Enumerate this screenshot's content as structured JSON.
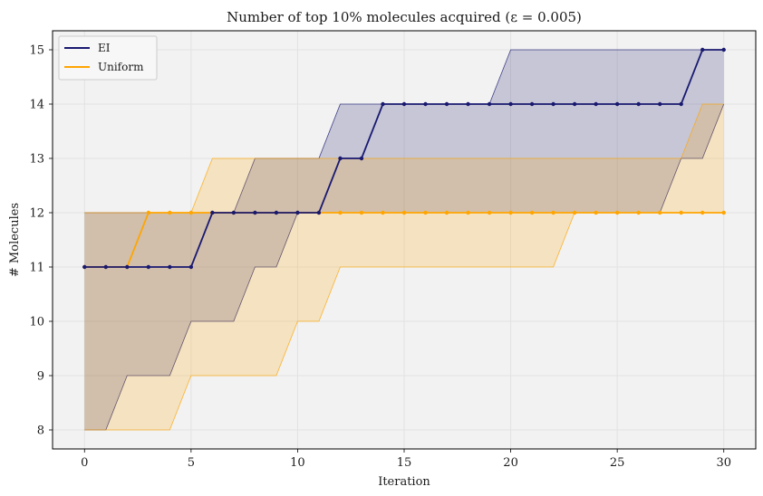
{
  "chart_data": {
    "type": "line",
    "title": "Number of top 10% molecules acquired (ε = 0.005)",
    "xlabel": "Iteration",
    "ylabel": "# Molecules",
    "xlim": [
      -1.5,
      31.5
    ],
    "ylim": [
      7.65,
      15.35
    ],
    "xticks": [
      0,
      5,
      10,
      15,
      20,
      25,
      30
    ],
    "yticks": [
      8,
      9,
      10,
      11,
      12,
      13,
      14,
      15
    ],
    "grid": true,
    "legend_position": "top-left",
    "x": [
      0,
      1,
      2,
      3,
      4,
      5,
      6,
      7,
      8,
      9,
      10,
      11,
      12,
      13,
      14,
      15,
      16,
      17,
      18,
      19,
      20,
      21,
      22,
      23,
      24,
      25,
      26,
      27,
      28,
      29,
      30
    ],
    "series": [
      {
        "name": "EI",
        "color": "#191970",
        "values": [
          11,
          11,
          11,
          11,
          11,
          11,
          12,
          12,
          12,
          12,
          12,
          12,
          13,
          13,
          14,
          14,
          14,
          14,
          14,
          14,
          14,
          14,
          14,
          14,
          14,
          14,
          14,
          14,
          14,
          15,
          15
        ],
        "upper": [
          12,
          12,
          12,
          12,
          12,
          12,
          12,
          12,
          13,
          13,
          13,
          13,
          14,
          14,
          14,
          14,
          14,
          14,
          14,
          14,
          15,
          15,
          15,
          15,
          15,
          15,
          15,
          15,
          15,
          15,
          15
        ],
        "lower": [
          8,
          8,
          9,
          9,
          9,
          10,
          10,
          10,
          11,
          11,
          12,
          12,
          12,
          12,
          12,
          12,
          12,
          12,
          12,
          12,
          12,
          12,
          12,
          12,
          12,
          12,
          12,
          12,
          13,
          13,
          14
        ]
      },
      {
        "name": "Uniform",
        "color": "#ffa500",
        "values": [
          11,
          11,
          11,
          12,
          12,
          12,
          12,
          12,
          12,
          12,
          12,
          12,
          12,
          12,
          12,
          12,
          12,
          12,
          12,
          12,
          12,
          12,
          12,
          12,
          12,
          12,
          12,
          12,
          12,
          12,
          12
        ],
        "upper": [
          12,
          12,
          12,
          12,
          12,
          12,
          13,
          13,
          13,
          13,
          13,
          13,
          13,
          13,
          13,
          13,
          13,
          13,
          13,
          13,
          13,
          13,
          13,
          13,
          13,
          13,
          13,
          13,
          13,
          14,
          14
        ],
        "lower": [
          8,
          8,
          8,
          8,
          8,
          9,
          9,
          9,
          9,
          9,
          10,
          10,
          11,
          11,
          11,
          11,
          11,
          11,
          11,
          11,
          11,
          11,
          11,
          12,
          12,
          12,
          12,
          12,
          12,
          12,
          12
        ]
      }
    ]
  }
}
